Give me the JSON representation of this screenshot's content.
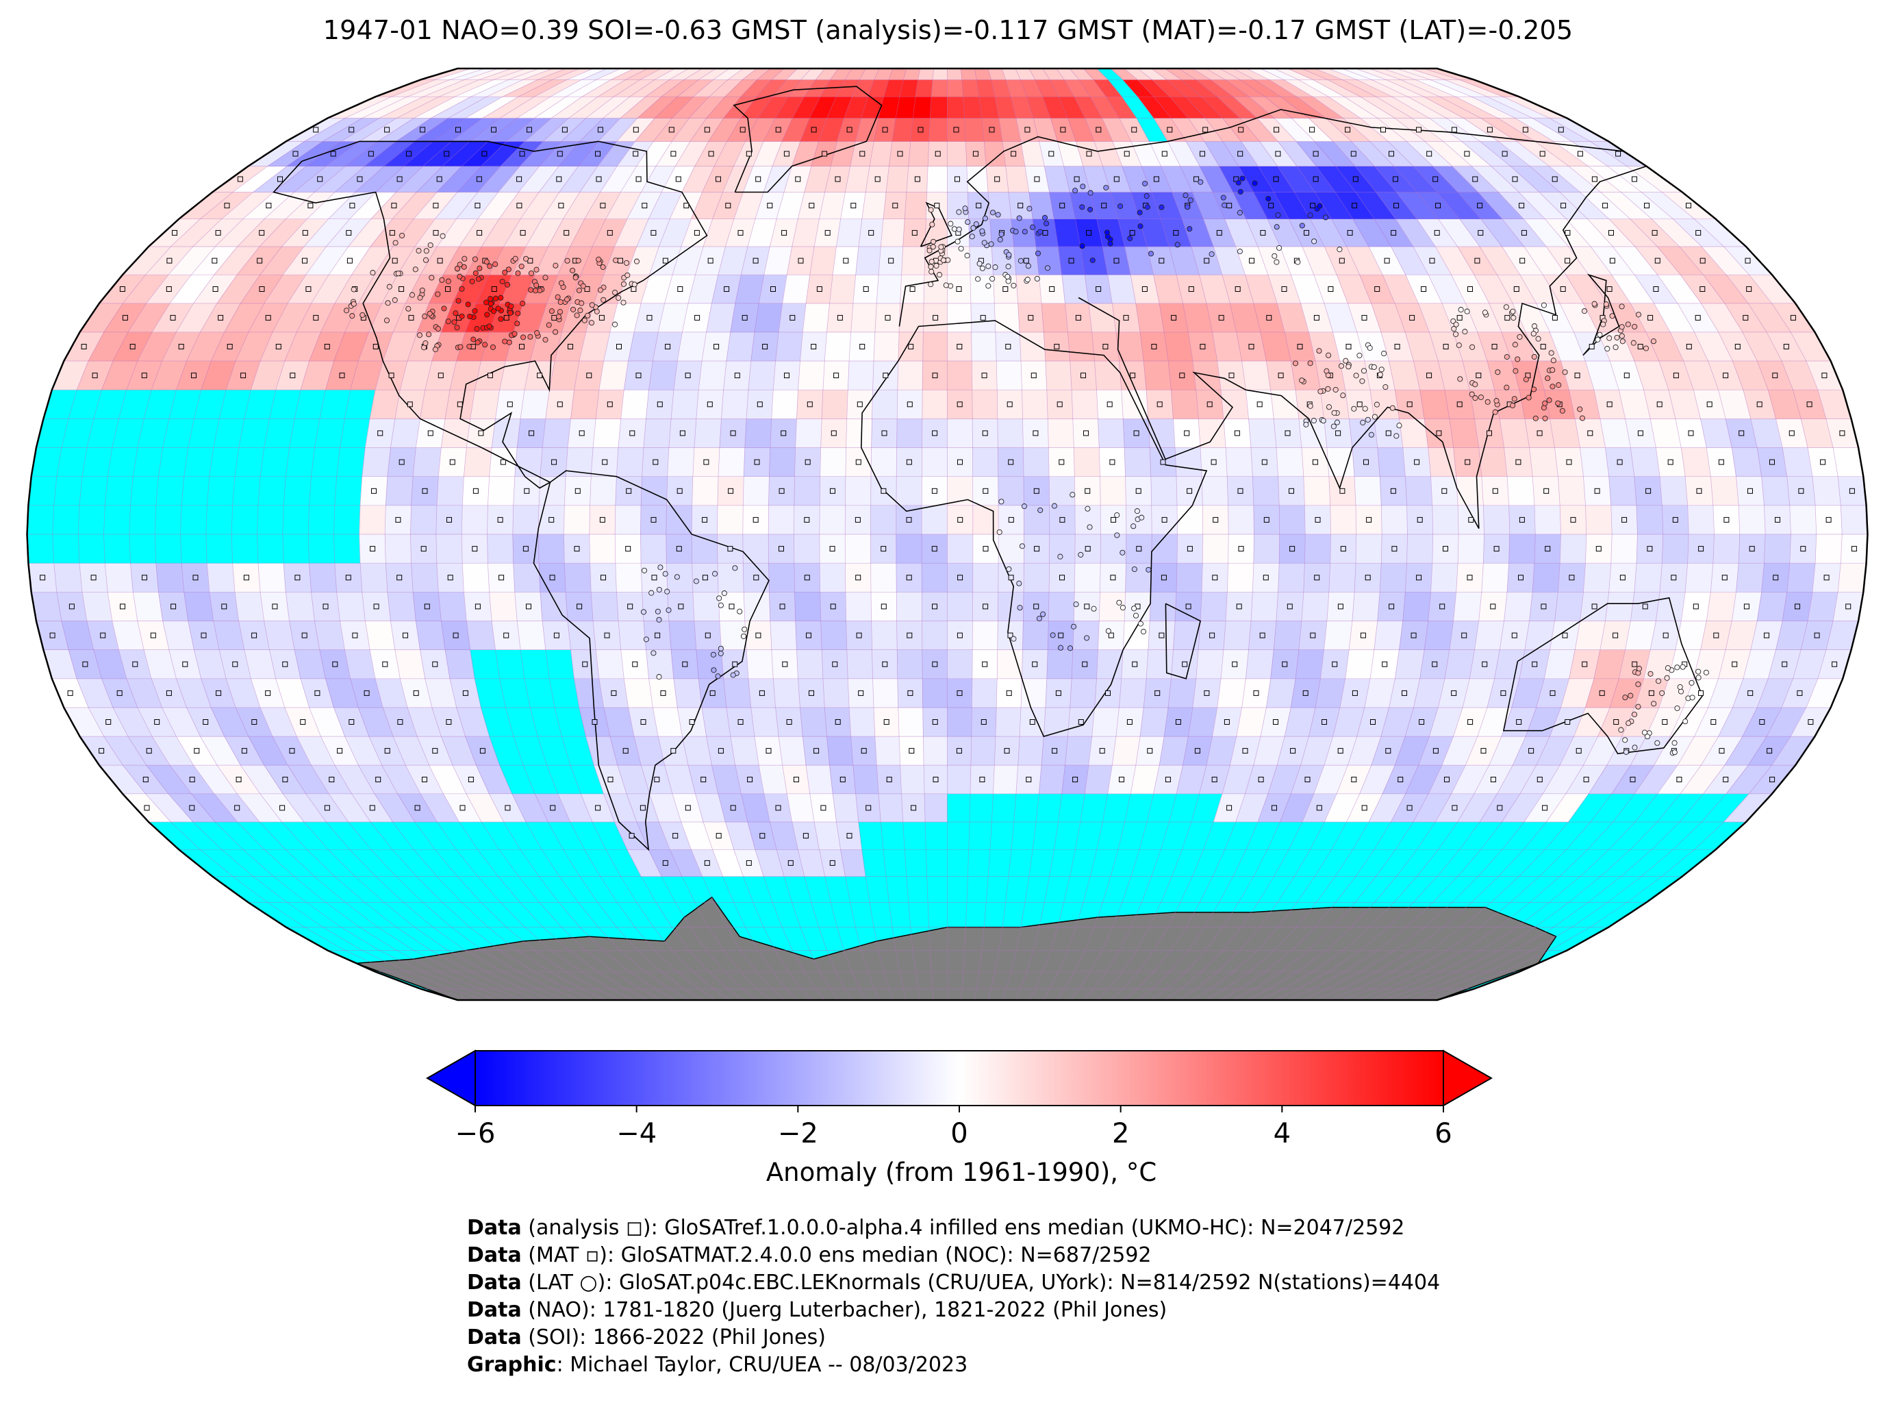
{
  "title": "1947-01 NAO=0.39 SOI=-0.63 GMST (analysis)=-0.117 GMST (MAT)=-0.17 GMST (LAT)=-0.205",
  "colorbar": {
    "label": "Anomaly (from 1961-1990), °C",
    "ticks": [
      "−6",
      "−4",
      "−2",
      "0",
      "2",
      "4",
      "6"
    ],
    "min": -6,
    "max": 6,
    "colors": {
      "low": "#0000ff",
      "mid": "#ffffff",
      "high": "#ff0000"
    }
  },
  "map": {
    "projection": "Robinson",
    "grid_resolution_deg": 5,
    "colors": {
      "no_data": "#00ffff",
      "land_antarctica": "#808080",
      "coastline": "#000000",
      "gridlines": "#b070c0"
    },
    "markers": {
      "analysis": "square",
      "mat": "small-square",
      "lat": "circle"
    }
  },
  "credits": [
    {
      "bold": "Data",
      "text": " (analysis ◻): GloSATref.1.0.0.0-alpha.4 infilled ens median (UKMO-HC): N=2047/2592"
    },
    {
      "bold": "Data",
      "text": " (MAT ▫): GloSATMAT.2.4.0.0 ens median (NOC): N=687/2592"
    },
    {
      "bold": "Data",
      "text": " (LAT ○): GloSAT.p04c.EBC.LEKnormals (CRU/UEA, UYork): N=814/2592 N(stations)=4404"
    },
    {
      "bold": "Data",
      "text": " (NAO): 1781-1820 (Juerg Luterbacher), 1821-2022 (Phil Jones)"
    },
    {
      "bold": "Data",
      "text": " (SOI): 1866-2022 (Phil Jones)"
    },
    {
      "bold": "Graphic",
      "text": ": Michael Taylor, CRU/UEA -- 08/03/2023"
    }
  ]
}
